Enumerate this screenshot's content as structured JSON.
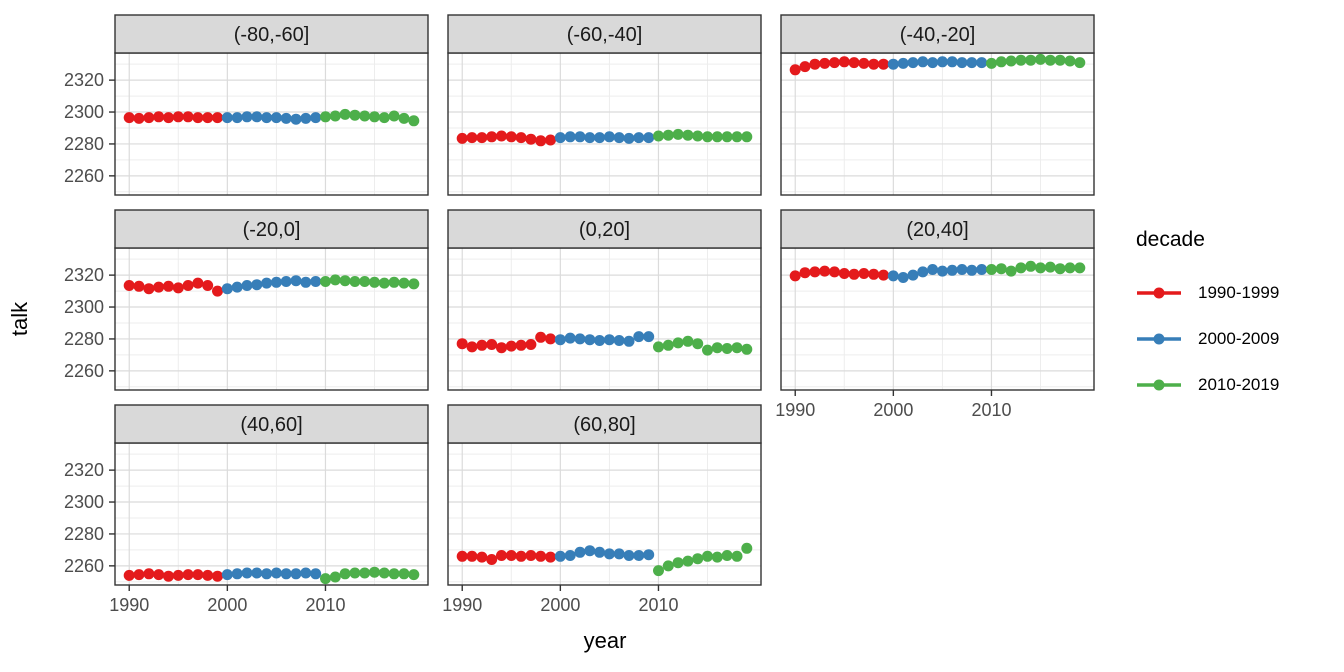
{
  "chart_data": {
    "type": "scatter",
    "title": "",
    "xlabel": "year",
    "ylabel": "talk",
    "x": [
      1990,
      1991,
      1992,
      1993,
      1994,
      1995,
      1996,
      1997,
      1998,
      1999,
      2000,
      2001,
      2002,
      2003,
      2004,
      2005,
      2006,
      2007,
      2008,
      2009,
      2010,
      2011,
      2012,
      2013,
      2014,
      2015,
      2016,
      2017,
      2018,
      2019
    ],
    "xlim": [
      1988.55,
      2020.45
    ],
    "ylim": [
      2248,
      2337
    ],
    "x_ticks": [
      1990,
      2000,
      2010
    ],
    "y_ticks": [
      2320,
      2300,
      2280,
      2260
    ],
    "x_minor_ticks": [
      1995,
      2005,
      2015
    ],
    "y_minor_ticks": [
      2330,
      2310,
      2290,
      2270,
      2250
    ],
    "grid": true,
    "legend": {
      "title": "decade",
      "position": "right",
      "entries": [
        {
          "label": "1990-1999",
          "color": "#E41A1C"
        },
        {
          "label": "2000-2009",
          "color": "#377EB8"
        },
        {
          "label": "2010-2019",
          "color": "#4DAF4A"
        }
      ]
    },
    "facets": [
      {
        "label": "(-80,-60]",
        "values": [
          2296.5,
          2296,
          2296.5,
          2297,
          2296.5,
          2297,
          2297,
          2296.5,
          2296.5,
          2296.5,
          2296.5,
          2296.5,
          2297,
          2297,
          2296.5,
          2296.5,
          2296,
          2295.5,
          2296,
          2296.5,
          2297,
          2297.5,
          2298.5,
          2298,
          2297.5,
          2297,
          2296.5,
          2297.5,
          2296,
          2294.5
        ]
      },
      {
        "label": "(-60,-40]",
        "values": [
          2283.5,
          2284,
          2284,
          2284.5,
          2285,
          2284.5,
          2284,
          2283,
          2282,
          2282.5,
          2284,
          2284.5,
          2284.5,
          2284,
          2284,
          2284.5,
          2284,
          2283.5,
          2284,
          2284,
          2285,
          2285.5,
          2286,
          2285.5,
          2285,
          2284.5,
          2284.5,
          2284.5,
          2284.5,
          2284.5
        ]
      },
      {
        "label": "(-40,-20]",
        "values": [
          2326.5,
          2328.5,
          2330,
          2330.5,
          2331,
          2331.5,
          2331,
          2330.5,
          2330,
          2330,
          2330,
          2330.5,
          2331,
          2331.5,
          2331,
          2331.5,
          2331.5,
          2331,
          2331,
          2331,
          2330.5,
          2331.5,
          2332,
          2332.5,
          2332.5,
          2333,
          2332.5,
          2332.5,
          2332,
          2331
        ]
      },
      {
        "label": "(-20,0]",
        "values": [
          2313.5,
          2313,
          2311.5,
          2312.5,
          2313,
          2312,
          2313.5,
          2315,
          2313.5,
          2310,
          2311.5,
          2312.5,
          2313.5,
          2314,
          2315,
          2315.5,
          2316,
          2316.5,
          2315.5,
          2316,
          2316,
          2317,
          2316.5,
          2316,
          2316,
          2315.5,
          2315,
          2315.5,
          2315,
          2314.5
        ]
      },
      {
        "label": "(0,20]",
        "values": [
          2277,
          2275,
          2276,
          2276.5,
          2274.5,
          2275.5,
          2276,
          2276.5,
          2281,
          2280,
          2279.5,
          2280.5,
          2280,
          2279.5,
          2279,
          2279.5,
          2279,
          2278.5,
          2281.5,
          2281.5,
          2275,
          2276,
          2277.5,
          2278.5,
          2277,
          2273,
          2274.5,
          2274,
          2274.5,
          2273.5
        ]
      },
      {
        "label": "(20,40]",
        "values": [
          2319.5,
          2321.5,
          2322,
          2322.5,
          2322,
          2321,
          2320.5,
          2321,
          2320.5,
          2320,
          2319.5,
          2318.5,
          2320,
          2322,
          2323.5,
          2322.5,
          2323,
          2323.5,
          2323,
          2323.5,
          2323.5,
          2324,
          2322.5,
          2324.5,
          2325.5,
          2324.5,
          2325,
          2324,
          2324.5,
          2324.5
        ]
      },
      {
        "label": "(40,60]",
        "values": [
          2254,
          2254.5,
          2255,
          2254.5,
          2253.5,
          2254,
          2254.5,
          2254.5,
          2254,
          2253.5,
          2254.5,
          2255,
          2255.5,
          2255.5,
          2255,
          2255.5,
          2255,
          2255,
          2255.5,
          2255,
          2252,
          2253,
          2255,
          2255.5,
          2255.5,
          2256,
          2255.5,
          2255,
          2255,
          2254.5
        ]
      },
      {
        "label": "(60,80]",
        "values": [
          2266,
          2266,
          2265.5,
          2264,
          2266.5,
          2266.5,
          2266,
          2266.5,
          2266,
          2265.5,
          2266,
          2266.5,
          2268.5,
          2269.5,
          2268.5,
          2267.5,
          2267.5,
          2266.5,
          2266.5,
          2267,
          2257,
          2260,
          2262,
          2263,
          2264.5,
          2266,
          2265.5,
          2266.5,
          2266,
          2271
        ]
      }
    ],
    "style": {
      "strip_bg": "#D9D9D9",
      "strip_text": "#1A1A1A",
      "panel_bg": "#FFFFFF",
      "panel_border": "#333333",
      "grid_major": "#DBDBDB",
      "grid_minor": "#EDEDED",
      "tick_text": "#4D4D4D",
      "tick_mark": "#333333",
      "point_radius": 5.5
    }
  }
}
